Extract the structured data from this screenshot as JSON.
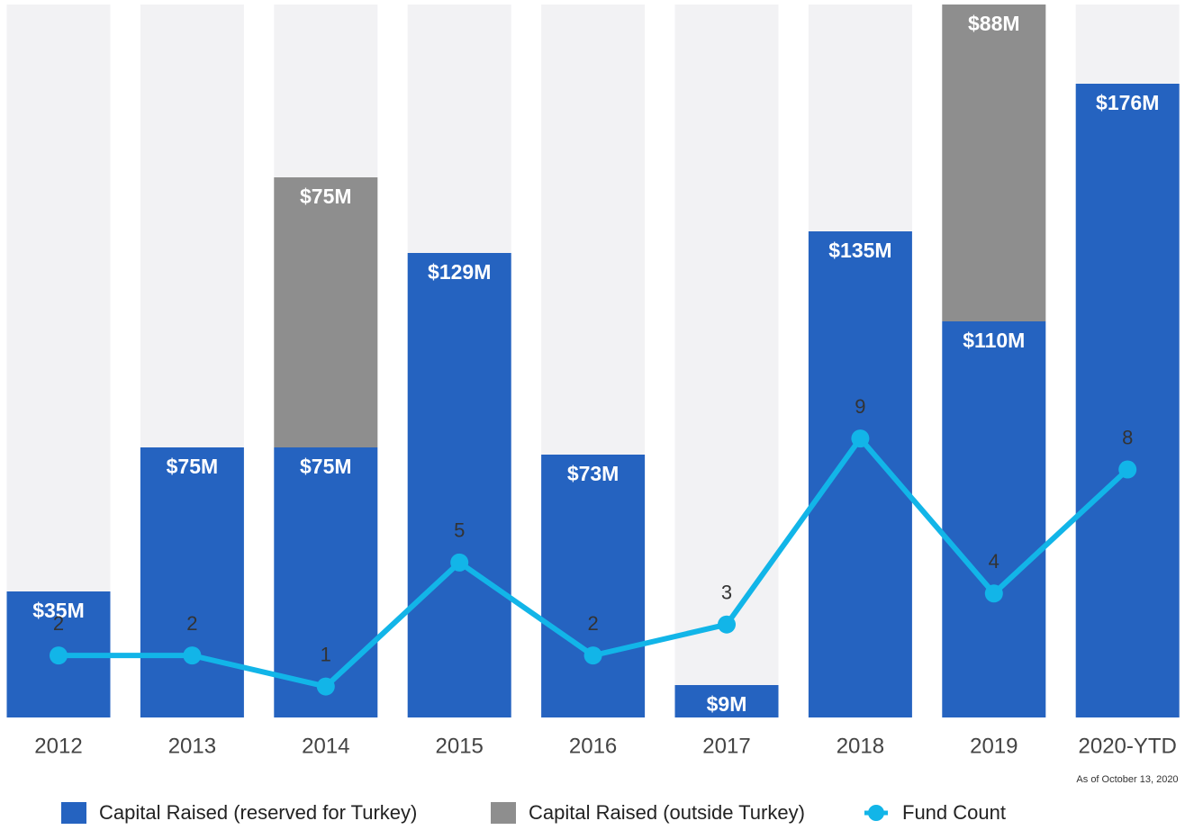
{
  "chart_data": {
    "type": "bar",
    "categories": [
      "2012",
      "2013",
      "2014",
      "2015",
      "2016",
      "2017",
      "2018",
      "2019",
      "2020-YTD"
    ],
    "series": [
      {
        "name": "Capital Raised (reserved for Turkey)",
        "color": "#2563c0",
        "values": [
          35,
          75,
          75,
          129,
          73,
          9,
          135,
          110,
          176
        ],
        "value_labels": [
          "$35M",
          "$75M",
          "$75M",
          "$129M",
          "$73M",
          "$9M",
          "$135M",
          "$110M",
          "$176M"
        ]
      },
      {
        "name": "Capital Raised (outside Turkey)",
        "color": "#8e8e8e",
        "values": [
          null,
          null,
          75,
          null,
          null,
          null,
          null,
          88,
          null
        ],
        "value_labels": [
          null,
          null,
          "$75M",
          null,
          null,
          null,
          null,
          "$88M",
          null
        ]
      },
      {
        "name": "Fund Count",
        "color": "#12b5e8",
        "type": "line",
        "axis": "y2",
        "values": [
          2,
          2,
          1,
          5,
          2,
          3,
          9,
          4,
          8
        ]
      }
    ],
    "ylim": [
      0,
      198
    ],
    "y2lim": [
      0,
      23
    ],
    "stacked": true,
    "annotation": "As of October 13, 2020"
  }
}
